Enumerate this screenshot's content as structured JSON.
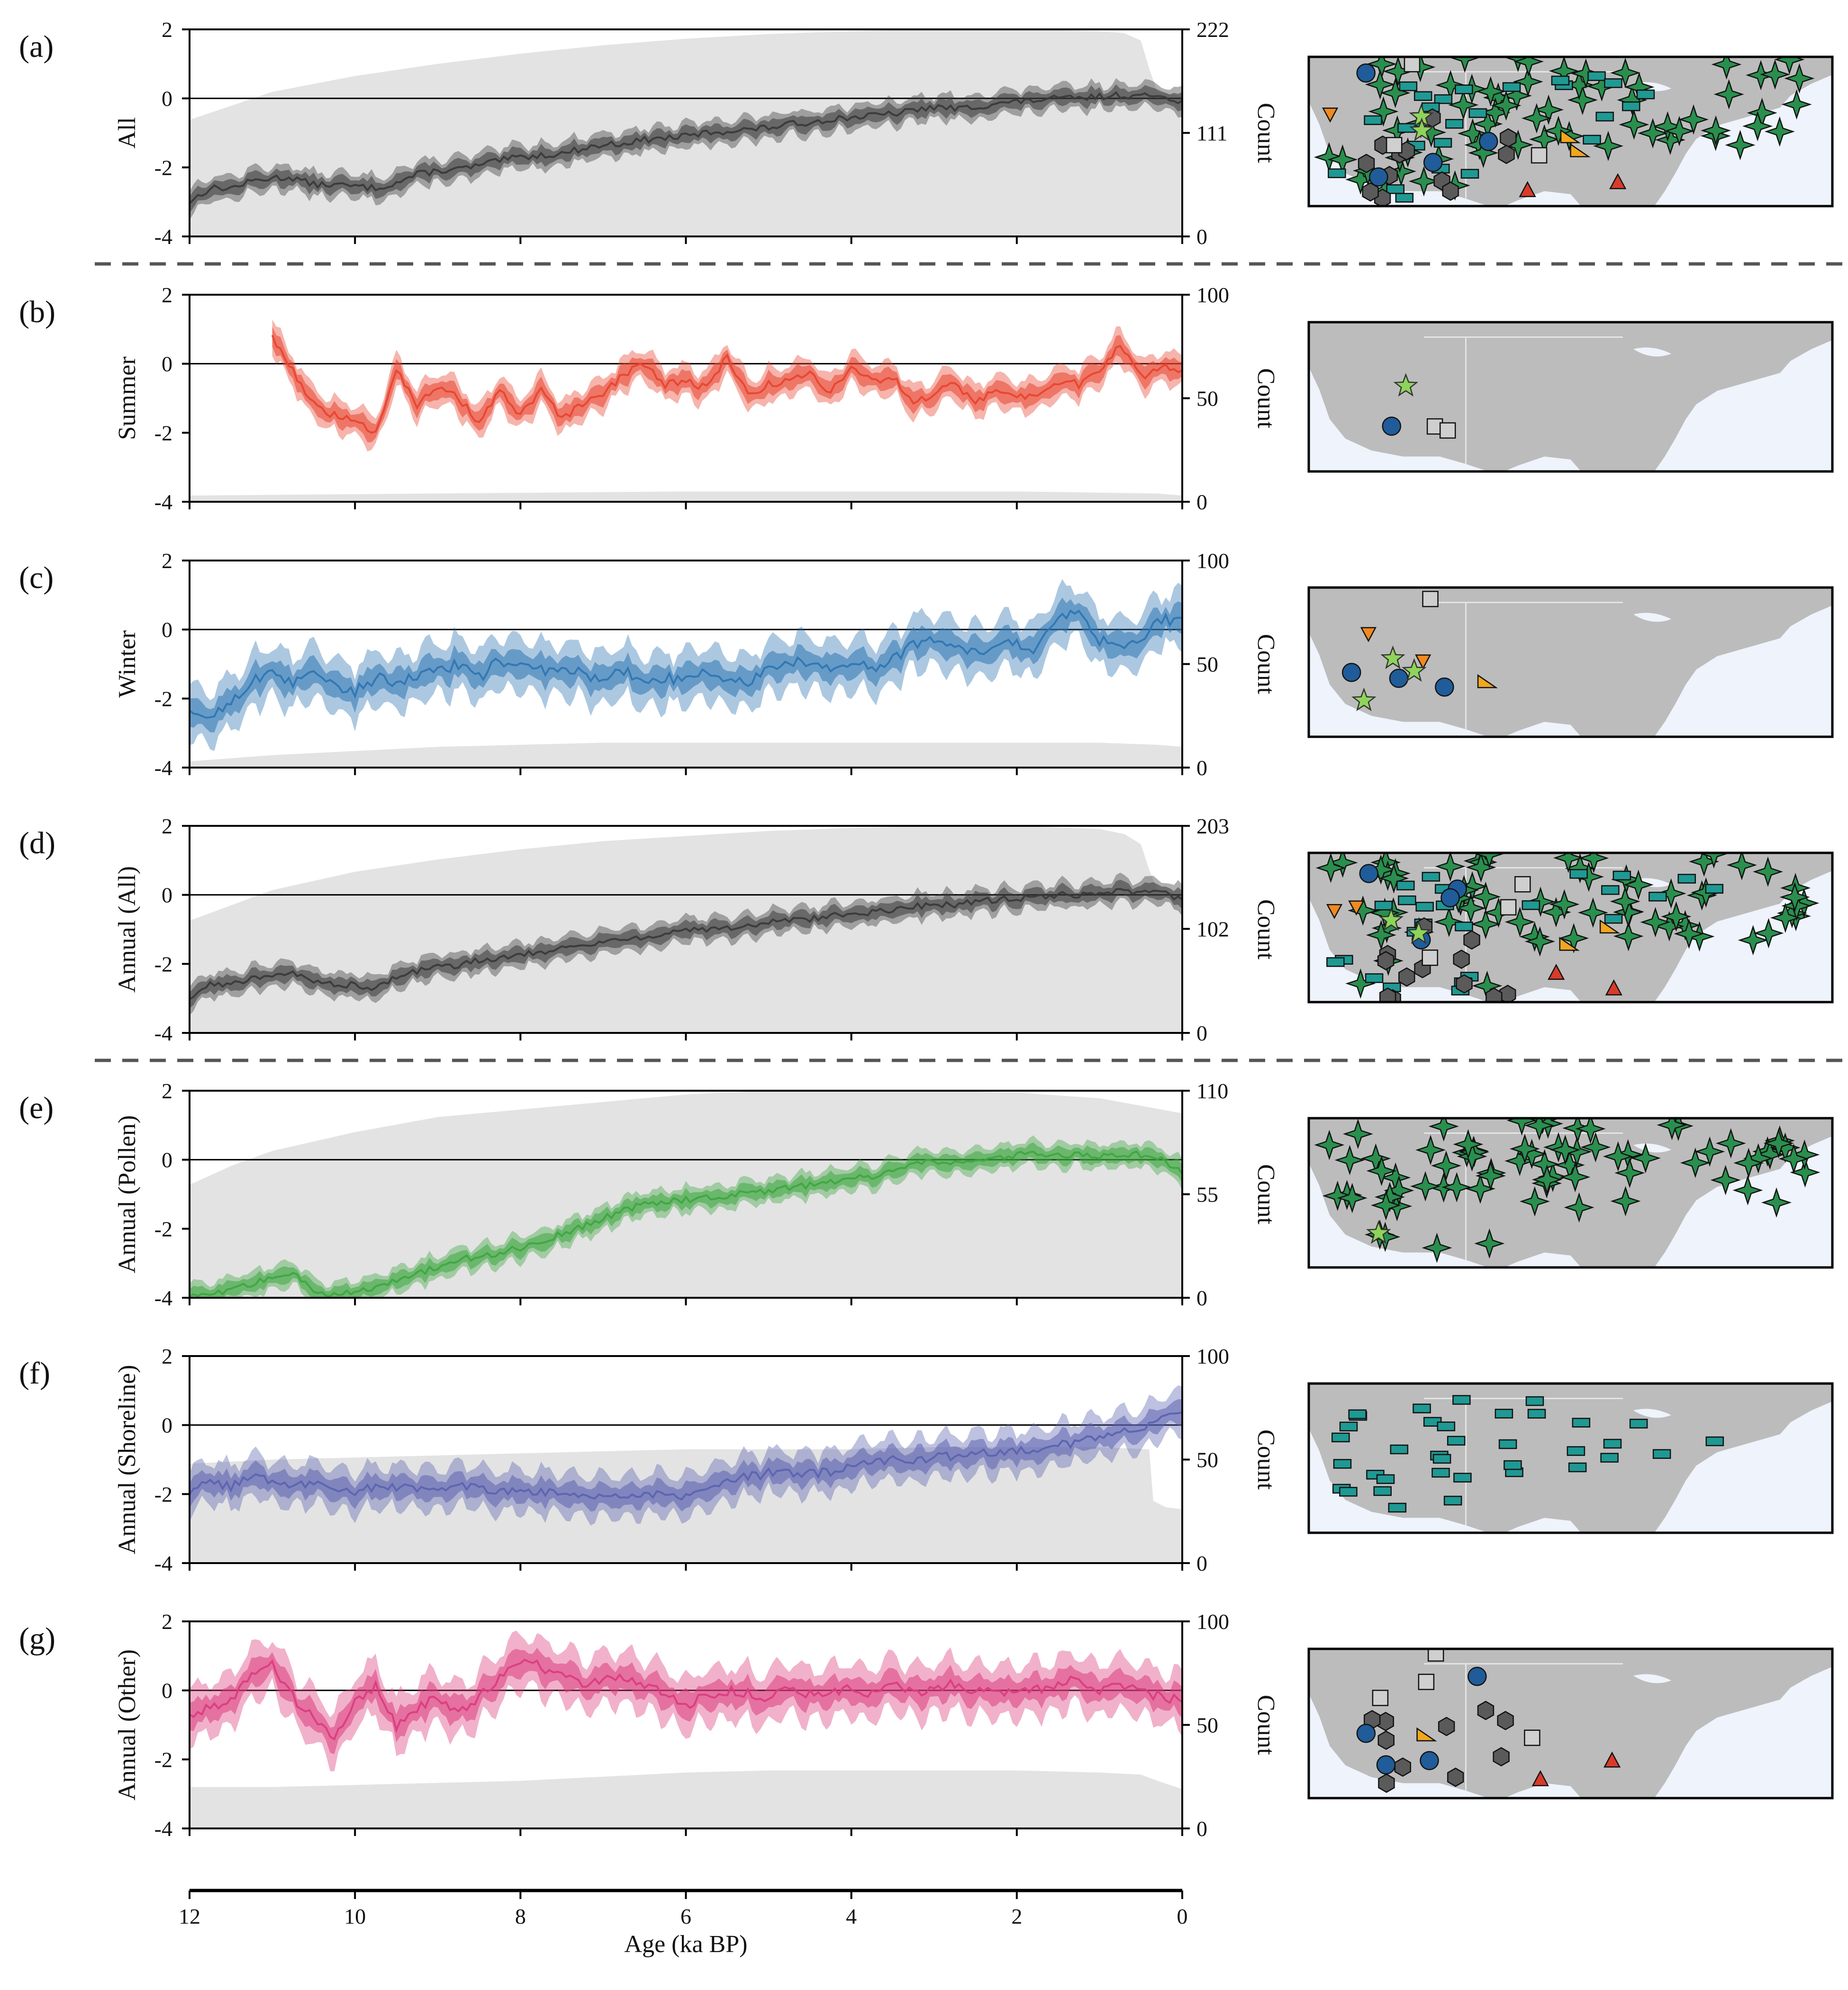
{
  "figure": {
    "x_axis_label": "Age (ka BP)",
    "x_ticks": [
      12,
      10,
      8,
      6,
      4,
      2,
      0
    ],
    "right_axis_label": "Count"
  },
  "colors": {
    "count_fill": "#e3e3e3",
    "map_land": "#bcbcbc",
    "map_ocean": "#eef3fc",
    "panel_separator": "#555555"
  },
  "chart_data": [
    {
      "id": "a",
      "letter": "(a)",
      "type": "area",
      "ylabel": "All",
      "color": "#3a3a3a",
      "ylim": [
        -4,
        2
      ],
      "y_ticks": [
        -4,
        -2,
        0,
        2
      ],
      "count_ylim": [
        0,
        222
      ],
      "count_ticks": [
        0,
        111,
        222
      ],
      "anomaly_x": [
        12,
        11.75,
        11.5,
        11.25,
        11,
        10.75,
        10.5,
        10.25,
        10,
        9.75,
        9.5,
        9.25,
        9,
        8.75,
        8.5,
        8.25,
        8,
        7.75,
        7.5,
        7.25,
        7,
        6.75,
        6.5,
        6.25,
        6,
        5.75,
        5.5,
        5.25,
        5,
        4.75,
        4.5,
        4.25,
        4,
        3.75,
        3.5,
        3.25,
        3,
        2.75,
        2.5,
        2.25,
        2,
        1.75,
        1.5,
        1.25,
        1,
        0.75,
        0.5,
        0.25,
        0
      ],
      "anomaly_y": [
        -3.0,
        -2.6,
        -2.6,
        -2.4,
        -2.3,
        -2.3,
        -2.5,
        -2.5,
        -2.55,
        -2.6,
        -2.45,
        -2.2,
        -2.1,
        -2.05,
        -1.95,
        -1.8,
        -1.7,
        -1.65,
        -1.6,
        -1.45,
        -1.35,
        -1.3,
        -1.2,
        -1.15,
        -1.1,
        -1.0,
        -0.95,
        -0.9,
        -0.85,
        -0.75,
        -0.7,
        -0.6,
        -0.55,
        -0.5,
        -0.45,
        -0.35,
        -0.25,
        -0.3,
        -0.25,
        -0.15,
        -0.1,
        -0.05,
        0.0,
        0.0,
        0.05,
        0.1,
        0.05,
        0.1,
        -0.1
      ],
      "band": [
        0.2,
        0.35
      ],
      "count_x": [
        12,
        11,
        10,
        9,
        8,
        7,
        6,
        5,
        4,
        3,
        2,
        1,
        0.7,
        0.5,
        0.4,
        0.3,
        0
      ],
      "count_y": [
        125,
        155,
        172,
        185,
        196,
        205,
        212,
        217,
        220,
        222,
        222,
        220,
        218,
        210,
        180,
        155,
        150
      ],
      "map_key": "all"
    },
    {
      "id": "b",
      "letter": "(b)",
      "type": "area",
      "ylabel": "Summer",
      "color": "#e8442f",
      "ylim": [
        -4,
        2
      ],
      "y_ticks": [
        -4,
        -2,
        0,
        2
      ],
      "count_ylim": [
        0,
        100
      ],
      "count_ticks": [
        0,
        50,
        100
      ],
      "anomaly_x": [
        11,
        10.75,
        10.5,
        10.25,
        10,
        9.75,
        9.5,
        9.25,
        9,
        8.75,
        8.5,
        8.25,
        8,
        7.75,
        7.5,
        7.25,
        7,
        6.75,
        6.5,
        6.25,
        6,
        5.75,
        5.5,
        5.25,
        5,
        4.75,
        4.5,
        4.25,
        4,
        3.75,
        3.5,
        3.25,
        3,
        2.75,
        2.5,
        2.25,
        2,
        1.75,
        1.5,
        1.25,
        1,
        0.75,
        0.5,
        0.25,
        0
      ],
      "anomaly_y": [
        0.8,
        -0.2,
        -1.2,
        -1.5,
        -1.7,
        -2.0,
        -0.1,
        -1.2,
        -0.7,
        -1.0,
        -1.7,
        -0.8,
        -1.5,
        -0.8,
        -1.6,
        -1.2,
        -0.9,
        -0.3,
        0.0,
        -0.6,
        -0.5,
        -0.7,
        0.2,
        -0.9,
        -0.6,
        -0.5,
        -0.3,
        -0.8,
        -0.1,
        -0.5,
        -0.4,
        -1.1,
        -0.9,
        -0.5,
        -1.2,
        -0.7,
        -0.9,
        -1.0,
        -0.5,
        -0.6,
        -0.2,
        0.6,
        -0.4,
        -0.1,
        -0.2
      ],
      "band": [
        0.25,
        0.45
      ],
      "count_x": [
        12,
        9,
        6,
        4,
        2,
        0.3,
        0
      ],
      "count_y": [
        3,
        4,
        5,
        5,
        5,
        4,
        3
      ],
      "map_key": "summer"
    },
    {
      "id": "c",
      "letter": "(c)",
      "type": "area",
      "ylabel": "Winter",
      "color": "#2f76b3",
      "ylim": [
        -4,
        2
      ],
      "y_ticks": [
        -4,
        -2,
        0,
        2
      ],
      "count_ylim": [
        0,
        100
      ],
      "count_ticks": [
        0,
        50,
        100
      ],
      "anomaly_x": [
        12,
        11.75,
        11.5,
        11.25,
        11,
        10.75,
        10.5,
        10.25,
        10,
        9.75,
        9.5,
        9.25,
        9,
        8.75,
        8.5,
        8.25,
        8,
        7.75,
        7.5,
        7.25,
        7,
        6.75,
        6.5,
        6.25,
        6,
        5.75,
        5.5,
        5.25,
        5,
        4.75,
        4.5,
        4.25,
        4,
        3.75,
        3.5,
        3.25,
        3,
        2.75,
        2.5,
        2.25,
        2,
        1.75,
        1.5,
        1.25,
        1,
        0.75,
        0.5,
        0.25,
        0
      ],
      "anomaly_y": [
        -2.5,
        -2.5,
        -2.1,
        -1.5,
        -1.3,
        -1.6,
        -1.1,
        -1.6,
        -1.8,
        -1.4,
        -1.5,
        -1.4,
        -1.2,
        -1.0,
        -1.4,
        -0.9,
        -1.1,
        -1.2,
        -1.1,
        -1.3,
        -1.4,
        -1.2,
        -1.5,
        -1.4,
        -1.5,
        -1.2,
        -1.4,
        -1.5,
        -1.2,
        -1.0,
        -0.9,
        -1.2,
        -1.0,
        -1.1,
        -0.9,
        -0.4,
        -0.3,
        -0.5,
        -0.7,
        -0.5,
        -0.4,
        -0.6,
        0.4,
        0.6,
        -0.3,
        -0.5,
        -0.3,
        0.3,
        0.2
      ],
      "band": [
        0.35,
        0.75
      ],
      "count_x": [
        12,
        11,
        10,
        9,
        8,
        7,
        6,
        5,
        4,
        3,
        2,
        1,
        0.3,
        0
      ],
      "count_y": [
        3,
        6,
        8,
        10,
        11,
        12,
        12,
        12,
        12,
        12,
        12,
        12,
        11,
        10
      ],
      "map_key": "winter"
    },
    {
      "id": "d",
      "letter": "(d)",
      "type": "area",
      "ylabel": "Annual (All)",
      "color": "#3a3a3a",
      "ylim": [
        -4,
        2
      ],
      "y_ticks": [
        -4,
        -2,
        0,
        2
      ],
      "count_ylim": [
        0,
        203
      ],
      "count_ticks": [
        0,
        102,
        203
      ],
      "anomaly_x": [
        12,
        11.75,
        11.5,
        11.25,
        11,
        10.75,
        10.5,
        10.25,
        10,
        9.75,
        9.5,
        9.25,
        9,
        8.75,
        8.5,
        8.25,
        8,
        7.75,
        7.5,
        7.25,
        7,
        6.75,
        6.5,
        6.25,
        6,
        5.75,
        5.5,
        5.25,
        5,
        4.75,
        4.5,
        4.25,
        4,
        3.75,
        3.5,
        3.25,
        3,
        2.75,
        2.5,
        2.25,
        2,
        1.75,
        1.5,
        1.25,
        1,
        0.75,
        0.5,
        0.25,
        0
      ],
      "anomaly_y": [
        -3.0,
        -2.6,
        -2.6,
        -2.4,
        -2.3,
        -2.3,
        -2.5,
        -2.6,
        -2.6,
        -2.7,
        -2.4,
        -2.2,
        -2.1,
        -2.05,
        -1.9,
        -1.8,
        -1.7,
        -1.65,
        -1.55,
        -1.45,
        -1.35,
        -1.3,
        -1.2,
        -1.15,
        -1.05,
        -1.0,
        -0.95,
        -0.9,
        -0.8,
        -0.75,
        -0.7,
        -0.6,
        -0.55,
        -0.5,
        -0.45,
        -0.35,
        -0.25,
        -0.3,
        -0.2,
        -0.15,
        -0.1,
        -0.05,
        0.0,
        0.0,
        0.05,
        0.1,
        0.05,
        0.1,
        -0.15
      ],
      "band": [
        0.2,
        0.35
      ],
      "count_x": [
        12,
        11,
        10,
        9,
        8,
        7,
        6,
        5,
        4,
        3,
        2,
        1,
        0.7,
        0.5,
        0.4,
        0.3,
        0
      ],
      "count_y": [
        110,
        140,
        158,
        170,
        180,
        188,
        193,
        198,
        201,
        203,
        203,
        200,
        195,
        185,
        160,
        140,
        135
      ],
      "map_key": "all"
    },
    {
      "id": "e",
      "letter": "(e)",
      "type": "area",
      "ylabel": "Annual (Pollen)",
      "color": "#3fa741",
      "ylim": [
        -4,
        2
      ],
      "y_ticks": [
        -4,
        -2,
        0,
        2
      ],
      "count_ylim": [
        0,
        110
      ],
      "count_ticks": [
        0,
        55,
        110
      ],
      "anomaly_x": [
        12,
        11.75,
        11.5,
        11.25,
        11,
        10.75,
        10.5,
        10.25,
        10,
        9.75,
        9.5,
        9.25,
        9,
        8.75,
        8.5,
        8.25,
        8,
        7.75,
        7.5,
        7.25,
        7,
        6.75,
        6.5,
        6.25,
        6,
        5.75,
        5.5,
        5.25,
        5,
        4.75,
        4.5,
        4.25,
        4,
        3.75,
        3.5,
        3.25,
        3,
        2.75,
        2.5,
        2.25,
        2,
        1.75,
        1.5,
        1.25,
        1,
        0.75,
        0.5,
        0.25,
        0
      ],
      "anomaly_y": [
        -4.0,
        -3.9,
        -3.8,
        -3.6,
        -3.4,
        -3.3,
        -3.8,
        -3.9,
        -3.8,
        -3.7,
        -3.5,
        -3.3,
        -3.1,
        -2.9,
        -2.8,
        -2.7,
        -2.55,
        -2.35,
        -2.15,
        -1.95,
        -1.7,
        -1.45,
        -1.3,
        -1.2,
        -1.15,
        -1.1,
        -1.05,
        -0.95,
        -0.9,
        -0.8,
        -0.75,
        -0.65,
        -0.55,
        -0.5,
        -0.35,
        -0.15,
        -0.05,
        -0.1,
        -0.05,
        0.05,
        0.15,
        0.15,
        0.1,
        0.15,
        0.1,
        0.15,
        0.15,
        0.0,
        -0.35
      ],
      "band": [
        0.2,
        0.35
      ],
      "count_x": [
        12,
        11.5,
        11,
        10,
        9,
        8,
        7,
        6,
        5,
        4,
        3,
        2,
        1,
        0.5,
        0
      ],
      "count_y": [
        60,
        70,
        78,
        88,
        96,
        100,
        104,
        108,
        110,
        110,
        110,
        109,
        106,
        102,
        98
      ],
      "map_key": "pollen"
    },
    {
      "id": "f",
      "letter": "(f)",
      "type": "area",
      "ylabel": "Annual (Shoreline)",
      "color": "#5c63b0",
      "ylim": [
        -4,
        2
      ],
      "y_ticks": [
        -4,
        -2,
        0,
        2
      ],
      "count_ylim": [
        0,
        100
      ],
      "count_ticks": [
        0,
        50,
        100
      ],
      "anomaly_x": [
        12,
        11.75,
        11.5,
        11.25,
        11,
        10.75,
        10.5,
        10.25,
        10,
        9.75,
        9.5,
        9.25,
        9,
        8.75,
        8.5,
        8.25,
        8,
        7.75,
        7.5,
        7.25,
        7,
        6.75,
        6.5,
        6.25,
        6,
        5.75,
        5.5,
        5.25,
        5,
        4.75,
        4.5,
        4.25,
        4,
        3.75,
        3.5,
        3.25,
        3,
        2.75,
        2.5,
        2.25,
        2,
        1.75,
        1.5,
        1.25,
        1,
        0.75,
        0.5,
        0.25,
        0
      ],
      "anomaly_y": [
        -1.9,
        -1.7,
        -1.8,
        -1.5,
        -1.6,
        -1.7,
        -1.7,
        -1.8,
        -1.9,
        -1.8,
        -1.8,
        -1.9,
        -1.8,
        -1.7,
        -1.8,
        -1.9,
        -1.9,
        -1.9,
        -2.0,
        -2.1,
        -2.0,
        -2.0,
        -2.0,
        -2.05,
        -2.1,
        -1.9,
        -1.6,
        -1.5,
        -1.4,
        -1.4,
        -1.4,
        -1.35,
        -1.2,
        -1.1,
        -1.0,
        -1.05,
        -0.95,
        -0.9,
        -0.85,
        -0.8,
        -0.75,
        -0.7,
        -0.55,
        -0.5,
        -0.35,
        -0.2,
        -0.1,
        0.3,
        0.3
      ],
      "band": [
        0.3,
        0.6
      ],
      "count_x": [
        12,
        11,
        10,
        9,
        8,
        7,
        6,
        5,
        4,
        3,
        2,
        1,
        0.4,
        0.35,
        0.2,
        0
      ],
      "count_y": [
        48,
        50,
        51,
        52,
        53,
        54,
        55,
        55,
        55,
        56,
        56,
        56,
        55,
        30,
        27,
        26
      ],
      "map_key": "shoreline"
    },
    {
      "id": "g",
      "letter": "(g)",
      "type": "area",
      "ylabel": "Annual (Other)",
      "color": "#db3c7e",
      "ylim": [
        -4,
        2
      ],
      "y_ticks": [
        -4,
        -2,
        0,
        2
      ],
      "count_ylim": [
        0,
        100
      ],
      "count_ticks": [
        0,
        50,
        100
      ],
      "anomaly_x": [
        12,
        11.75,
        11.5,
        11.25,
        11,
        10.75,
        10.5,
        10.25,
        10,
        9.75,
        9.5,
        9.25,
        9,
        8.75,
        8.5,
        8.25,
        8,
        7.75,
        7.5,
        7.25,
        7,
        6.75,
        6.5,
        6.25,
        6,
        5.75,
        5.5,
        5.25,
        5,
        4.75,
        4.5,
        4.25,
        4,
        3.75,
        3.5,
        3.25,
        3,
        2.75,
        2.5,
        2.25,
        2,
        1.75,
        1.5,
        1.25,
        1,
        0.75,
        0.5,
        0.25,
        0
      ],
      "anomaly_y": [
        -0.7,
        -0.5,
        -0.2,
        0.4,
        0.8,
        -0.2,
        -0.8,
        -1.5,
        -0.3,
        0.1,
        -1.0,
        -0.5,
        -0.2,
        -0.6,
        -0.2,
        0.4,
        0.9,
        0.7,
        0.4,
        0.1,
        0.4,
        0.3,
        0.1,
        0.0,
        -0.5,
        -0.1,
        0.0,
        -0.1,
        -0.2,
        0.0,
        -0.1,
        0.0,
        0.0,
        -0.1,
        0.3,
        -0.1,
        0.0,
        0.2,
        0.0,
        -0.1,
        -0.1,
        0.0,
        0.2,
        0.35,
        0.0,
        0.1,
        0.0,
        -0.2,
        -0.3
      ],
      "band": [
        0.35,
        0.75
      ],
      "count_x": [
        12,
        11,
        10,
        9,
        8,
        7,
        6,
        5,
        4,
        3,
        2,
        1,
        0.5,
        0.3,
        0
      ],
      "count_y": [
        20,
        20,
        21,
        22,
        23,
        25,
        27,
        28,
        28,
        28,
        28,
        27,
        26,
        23,
        19
      ],
      "map_key": "other"
    }
  ],
  "maps": {
    "all": {
      "stars": 70,
      "rects": 25,
      "hexes": 12,
      "circles": 4,
      "squares": 3,
      "triangles": 2,
      "tri_down": 2,
      "wedges": 2,
      "light_stars": 2
    },
    "summer": {
      "stars": 0,
      "rects": 0,
      "hexes": 0,
      "circles": 1,
      "squares": 2,
      "triangles": 0,
      "tri_down": 0,
      "wedges": 0,
      "light_stars": 1
    },
    "winter": {
      "stars": 0,
      "rects": 0,
      "hexes": 0,
      "circles": 3,
      "squares": 1,
      "triangles": 0,
      "tri_down": 2,
      "wedges": 1,
      "light_stars": 3
    },
    "pollen": {
      "stars": 75,
      "rects": 0,
      "hexes": 0,
      "circles": 0,
      "squares": 0,
      "triangles": 0,
      "tri_down": 0,
      "wedges": 0,
      "light_stars": 1
    },
    "shoreline": {
      "stars": 0,
      "rects": 36,
      "hexes": 0,
      "circles": 0,
      "squares": 0,
      "triangles": 0,
      "tri_down": 0,
      "wedges": 0,
      "light_stars": 0
    },
    "other": {
      "stars": 0,
      "rects": 0,
      "hexes": 10,
      "circles": 4,
      "squares": 4,
      "triangles": 2,
      "tri_down": 0,
      "wedges": 1,
      "light_stars": 0
    }
  }
}
